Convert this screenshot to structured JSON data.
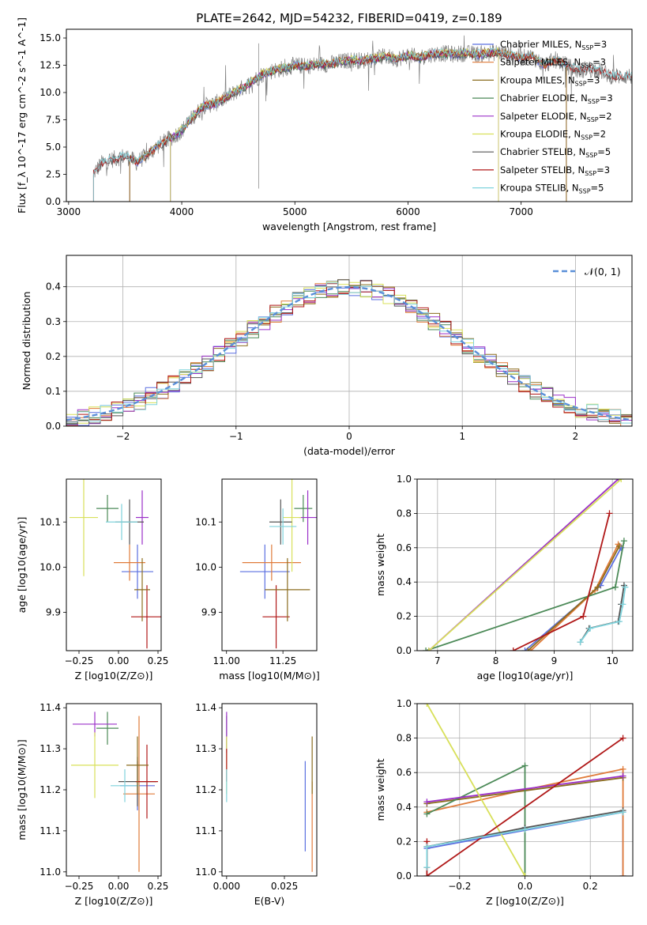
{
  "figure_title": "PLATE=2642, MJD=54232, FIBERID=0419, z=0.189",
  "colors": {
    "Chabrier MILES": "#5b6fe0",
    "Salpeter MILES": "#e07b3a",
    "Kroupa MILES": "#8b6d1f",
    "Chabrier ELODIE": "#4c8a58",
    "Salpeter ELODIE": "#9b30c8",
    "Kroupa ELODIE": "#d8e05a",
    "Chabrier STELIB": "#555555",
    "Salpeter STELIB": "#b01818",
    "Kroupa STELIB": "#7fd3dc"
  },
  "chart_data": [
    {
      "id": "spectrum",
      "type": "line",
      "title": "PLATE=2642, MJD=54232, FIBERID=0419, z=0.189",
      "xlabel": "wavelength [Angstrom, rest frame]",
      "ylabel": "Flux [f_λ 10^-17 erg cm^-2 s^-1 A^-1]",
      "xlim": [
        2980,
        7980
      ],
      "ylim": [
        0,
        15.8
      ],
      "xticks": [
        "3000",
        "4000",
        "5000",
        "6000",
        "7000"
      ],
      "yticks": [
        "0.0",
        "2.5",
        "5.0",
        "7.5",
        "10.0",
        "12.5",
        "15.0"
      ],
      "data_envelope": {
        "x": [
          3220,
          3300,
          3400,
          3500,
          3600,
          3700,
          3800,
          3900,
          4000,
          4100,
          4200,
          4300,
          4400,
          4500,
          4600,
          4700,
          4800,
          4900,
          5000,
          5100,
          5200,
          5300,
          5400,
          5500,
          5600,
          5700,
          5800,
          5900,
          6000,
          6100,
          6200,
          6300,
          6400,
          6500,
          6600,
          6700,
          6800,
          6900,
          7000,
          7100,
          7200,
          7300,
          7400,
          7500,
          7600,
          7700,
          7800,
          7980
        ],
        "y": [
          2.6,
          3.6,
          3.9,
          4.2,
          3.6,
          4.3,
          5.2,
          5.8,
          6.5,
          7.8,
          8.8,
          9.0,
          9.6,
          10.2,
          10.8,
          11.6,
          12.0,
          12.2,
          12.5,
          12.4,
          12.6,
          12.6,
          12.8,
          13.0,
          12.9,
          13.1,
          13.3,
          13.1,
          13.4,
          13.2,
          13.5,
          13.6,
          13.5,
          13.6,
          13.5,
          13.6,
          13.7,
          13.4,
          13.2,
          13.3,
          12.5,
          13.0,
          12.5,
          12.0,
          12.2,
          12.0,
          11.5,
          11.5
        ]
      },
      "model_start_wavelength": {
        "Chabrier MILES": 3540,
        "Salpeter MILES": 3540,
        "Kroupa MILES": 3540,
        "Chabrier ELODIE": 3900,
        "Salpeter ELODIE": 3900,
        "Kroupa ELODIE": 3900,
        "Chabrier STELIB": 3220,
        "Salpeter STELIB": 3220,
        "Kroupa STELIB": 3220
      },
      "model_end_wavelength": {
        "Chabrier MILES": 7400,
        "Salpeter MILES": 7400,
        "Kroupa MILES": 7400,
        "Chabrier ELODIE": 6800,
        "Salpeter ELODIE": 6800,
        "Kroupa ELODIE": 6800,
        "Chabrier STELIB": 7980,
        "Salpeter STELIB": 7980,
        "Kroupa STELIB": 7980
      },
      "legend": [
        "Chabrier MILES, N_SSP=3",
        "Salpeter MILES, N_SSP=3",
        "Kroupa MILES, N_SSP=3",
        "Chabrier ELODIE, N_SSP=3",
        "Salpeter ELODIE, N_SSP=2",
        "Kroupa ELODIE, N_SSP=2",
        "Chabrier STELIB, N_SSP=5",
        "Salpeter STELIB, N_SSP=3",
        "Kroupa STELIB, N_SSP=5"
      ],
      "legend_position": "right"
    },
    {
      "id": "residuals",
      "type": "histogram",
      "xlabel": "(data-model)/error",
      "ylabel": "Normed distribution",
      "xlim": [
        -2.5,
        2.5
      ],
      "ylim": [
        0,
        0.49
      ],
      "xticks": [
        "−2",
        "−1",
        "0",
        "1",
        "2"
      ],
      "yticks": [
        "0.0",
        "0.1",
        "0.2",
        "0.3",
        "0.4"
      ],
      "grid": true,
      "reference_curve": "N(0,1)",
      "legend_position": "top-right"
    },
    {
      "id": "age-vs-Z",
      "type": "scatter-errorbar",
      "xlabel": "Z [log10(Z/Z⊙)]",
      "ylabel": "age [log10(age/yr)]",
      "xlim": [
        -0.33,
        0.27
      ],
      "ylim": [
        9.815,
        10.195
      ],
      "xticks": [
        "−0.25",
        "0.00",
        "0.25"
      ],
      "yticks": [
        "9.9",
        "10.0",
        "10.1"
      ],
      "points": [
        {
          "model": "Chabrier MILES",
          "x": 0.12,
          "xerr": 0.1,
          "y": 9.99,
          "yerr": 0.06
        },
        {
          "model": "Salpeter MILES",
          "x": 0.07,
          "xerr": 0.1,
          "y": 10.01,
          "yerr": 0.04
        },
        {
          "model": "Chabrier ELODIE",
          "x": -0.07,
          "xerr": 0.07,
          "y": 10.13,
          "yerr": 0.03
        },
        {
          "model": "Salpeter ELODIE",
          "x": 0.15,
          "xerr": 0.04,
          "y": 10.11,
          "yerr": 0.06
        },
        {
          "model": "Kroupa ELODIE",
          "x": -0.22,
          "xerr": 0.09,
          "y": 10.11,
          "yerr": 0.13
        },
        {
          "model": "Chabrier STELIB",
          "x": 0.07,
          "xerr": 0.09,
          "y": 10.1,
          "yerr": 0.05
        },
        {
          "model": "Salpeter STELIB",
          "x": 0.18,
          "xerr": 0.1,
          "y": 9.89,
          "yerr": 0.07
        },
        {
          "model": "Kroupa STELIB",
          "x": 0.02,
          "xerr": 0.1,
          "y": 10.1,
          "yerr": 0.04
        },
        {
          "model": "Kroupa MILES",
          "x": 0.15,
          "xerr": 0.05,
          "y": 9.95,
          "yerr": 0.07
        }
      ]
    },
    {
      "id": "age-vs-mass",
      "type": "scatter-errorbar",
      "xlabel": "mass [log10(M/M⊙)]",
      "xlim": [
        10.98,
        11.4
      ],
      "ylim": [
        9.815,
        10.195
      ],
      "xticks": [
        "11.00",
        "11.25"
      ],
      "yticks": [
        "9.9",
        "10.0",
        "10.1"
      ],
      "points": [
        {
          "model": "Chabrier MILES",
          "x": 11.17,
          "xerr": 0.11,
          "y": 9.99,
          "yerr": 0.06
        },
        {
          "model": "Salpeter MILES",
          "x": 11.2,
          "xerr": 0.13,
          "y": 10.01,
          "yerr": 0.04
        },
        {
          "model": "Chabrier ELODIE",
          "x": 11.34,
          "xerr": 0.04,
          "y": 10.13,
          "yerr": 0.03
        },
        {
          "model": "Salpeter ELODIE",
          "x": 11.36,
          "xerr": 0.04,
          "y": 10.11,
          "yerr": 0.06
        },
        {
          "model": "Kroupa ELODIE",
          "x": 11.29,
          "xerr": 0.04,
          "y": 10.11,
          "yerr": 0.12
        },
        {
          "model": "Chabrier STELIB",
          "x": 11.24,
          "xerr": 0.05,
          "y": 10.1,
          "yerr": 0.05
        },
        {
          "model": "Salpeter STELIB",
          "x": 11.22,
          "xerr": 0.06,
          "y": 9.89,
          "yerr": 0.07
        },
        {
          "model": "Kroupa STELIB",
          "x": 11.25,
          "xerr": 0.06,
          "y": 10.09,
          "yerr": 0.04
        },
        {
          "model": "Kroupa MILES",
          "x": 11.27,
          "xerr": 0.1,
          "y": 9.95,
          "yerr": 0.07
        }
      ]
    },
    {
      "id": "massweight-vs-age",
      "type": "line",
      "xlabel": "age [log10(age/yr)]",
      "ylabel": "mass weight",
      "xlim": [
        6.65,
        10.35
      ],
      "ylim": [
        0,
        1
      ],
      "xticks": [
        "7",
        "8",
        "9",
        "10"
      ],
      "yticks": [
        "0.0",
        "0.2",
        "0.4",
        "0.6",
        "0.8",
        "1.0"
      ],
      "grid": true,
      "series": [
        {
          "model": "Chabrier MILES",
          "x": [
            8.5,
            9.8,
            10.15
          ],
          "y": [
            0.0,
            0.38,
            0.6
          ]
        },
        {
          "model": "Salpeter MILES",
          "x": [
            8.6,
            9.7,
            10.1
          ],
          "y": [
            0.0,
            0.35,
            0.62
          ]
        },
        {
          "model": "Kroupa MILES",
          "x": [
            8.55,
            9.75,
            10.12
          ],
          "y": [
            0.0,
            0.37,
            0.61
          ]
        },
        {
          "model": "Chabrier ELODIE",
          "x": [
            6.8,
            10.05,
            10.2
          ],
          "y": [
            0.0,
            0.37,
            0.64
          ]
        },
        {
          "model": "Salpeter ELODIE",
          "x": [
            6.85,
            10.1
          ],
          "y": [
            0.0,
            1.0
          ]
        },
        {
          "model": "Kroupa ELODIE",
          "x": [
            6.85,
            10.15
          ],
          "y": [
            0.0,
            1.0
          ]
        },
        {
          "model": "Chabrier STELIB",
          "x": [
            9.45,
            9.6,
            10.1,
            10.15,
            10.2
          ],
          "y": [
            0.05,
            0.13,
            0.17,
            0.27,
            0.38
          ]
        },
        {
          "model": "Salpeter STELIB",
          "x": [
            8.3,
            9.5,
            9.95
          ],
          "y": [
            0.0,
            0.2,
            0.8
          ]
        },
        {
          "model": "Kroupa STELIB",
          "x": [
            9.45,
            9.62,
            10.12,
            10.18,
            10.22
          ],
          "y": [
            0.05,
            0.13,
            0.17,
            0.27,
            0.37
          ]
        }
      ]
    },
    {
      "id": "mass-vs-Z",
      "type": "scatter-errorbar",
      "xlabel": "Z [log10(Z/Z⊙)]",
      "ylabel": "mass [log10(M/M⊙)]",
      "xlim": [
        -0.33,
        0.27
      ],
      "ylim": [
        10.99,
        11.41
      ],
      "xticks": [
        "−0.25",
        "0.00",
        "0.25"
      ],
      "yticks": [
        "11.0",
        "11.1",
        "11.2",
        "11.3",
        "11.4"
      ],
      "points": [
        {
          "model": "Chabrier MILES",
          "x": 0.12,
          "xerr": 0.11,
          "y": 11.21,
          "yerr": 0.06
        },
        {
          "model": "Salpeter MILES",
          "x": 0.13,
          "xerr": 0.1,
          "y": 11.19,
          "yerr": 0.19
        },
        {
          "model": "Chabrier ELODIE",
          "x": -0.07,
          "xerr": 0.07,
          "y": 11.35,
          "yerr": 0.04
        },
        {
          "model": "Salpeter ELODIE",
          "x": -0.15,
          "xerr": 0.14,
          "y": 11.36,
          "yerr": 0.03
        },
        {
          "model": "Kroupa ELODIE",
          "x": -0.15,
          "xerr": 0.15,
          "y": 11.26,
          "yerr": 0.08
        },
        {
          "model": "Chabrier STELIB",
          "x": 0.12,
          "xerr": 0.12,
          "y": 11.22,
          "yerr": 0.06
        },
        {
          "model": "Salpeter STELIB",
          "x": 0.18,
          "xerr": 0.07,
          "y": 11.22,
          "yerr": 0.09
        },
        {
          "model": "Kroupa STELIB",
          "x": 0.04,
          "xerr": 0.09,
          "y": 11.21,
          "yerr": 0.04
        },
        {
          "model": "Kroupa MILES",
          "x": 0.12,
          "xerr": 0.07,
          "y": 11.26,
          "yerr": 0.07
        }
      ]
    },
    {
      "id": "mass-vs-ebv",
      "type": "scatter-errorbar",
      "xlabel": "E(B-V)",
      "xlim": [
        -0.002,
        0.039
      ],
      "ylim": [
        10.99,
        11.41
      ],
      "xticks": [
        "0.000",
        "0.025"
      ],
      "yticks": [
        "11.0",
        "11.1",
        "11.2",
        "11.3",
        "11.4"
      ],
      "points": [
        {
          "model": "Chabrier MILES",
          "x": 0.034,
          "yerr": 0.11,
          "y": 11.16
        },
        {
          "model": "Salpeter MILES",
          "x": 0.037,
          "yerr": 0.11,
          "y": 11.11
        },
        {
          "model": "Chabrier ELODIE",
          "x": 0.0,
          "yerr": 0.04,
          "y": 11.34
        },
        {
          "model": "Salpeter ELODIE",
          "x": 0.0,
          "yerr": 0.05,
          "y": 11.34
        },
        {
          "model": "Kroupa ELODIE",
          "x": 0.0,
          "yerr": 0.07,
          "y": 11.26
        },
        {
          "model": "Salpeter STELIB",
          "x": 0.0,
          "yerr": 0.04,
          "y": 11.26
        },
        {
          "model": "Kroupa STELIB",
          "x": 0.0,
          "yerr": 0.04,
          "y": 11.21
        },
        {
          "model": "Kroupa MILES",
          "x": 0.037,
          "yerr": 0.07,
          "y": 11.26
        }
      ]
    },
    {
      "id": "massweight-vs-Z",
      "type": "line",
      "xlabel": "Z [log10(Z/Z⊙)]",
      "ylabel": "mass weight",
      "xlim": [
        -0.33,
        0.33
      ],
      "ylim": [
        0,
        1
      ],
      "xticks": [
        "−0.2",
        "0.0",
        "0.2"
      ],
      "yticks": [
        "0.0",
        "0.2",
        "0.4",
        "0.6",
        "0.8",
        "1.0"
      ],
      "grid": true,
      "series": [
        {
          "model": "Chabrier MILES",
          "x": [
            -0.3,
            0.3,
            0.3
          ],
          "y": [
            0.16,
            0.37,
            0.0
          ]
        },
        {
          "model": "Salpeter MILES",
          "x": [
            -0.3,
            0.0,
            0.3,
            0.3
          ],
          "y": [
            0.37,
            0.5,
            0.62,
            0.0
          ]
        },
        {
          "model": "Kroupa MILES",
          "x": [
            -0.3,
            0.3
          ],
          "y": [
            0.42,
            0.57
          ]
        },
        {
          "model": "Chabrier ELODIE",
          "x": [
            -0.3,
            0.0,
            0.0
          ],
          "y": [
            0.36,
            0.64,
            0.0
          ]
        },
        {
          "model": "Salpeter ELODIE",
          "x": [
            -0.3,
            0.3
          ],
          "y": [
            0.43,
            0.58
          ]
        },
        {
          "model": "Kroupa ELODIE",
          "x": [
            -0.3,
            0.0
          ],
          "y": [
            1.0,
            0.0
          ]
        },
        {
          "model": "Chabrier STELIB",
          "x": [
            -0.3,
            -0.3,
            0.0,
            0.3
          ],
          "y": [
            0.05,
            0.17,
            0.28,
            0.38
          ]
        },
        {
          "model": "Salpeter STELIB",
          "x": [
            -0.3,
            -0.3,
            0.3
          ],
          "y": [
            0.2,
            0.0,
            0.8
          ]
        },
        {
          "model": "Kroupa STELIB",
          "x": [
            -0.3,
            -0.3,
            0.0,
            0.3
          ],
          "y": [
            0.05,
            0.17,
            0.27,
            0.37
          ]
        }
      ]
    }
  ]
}
